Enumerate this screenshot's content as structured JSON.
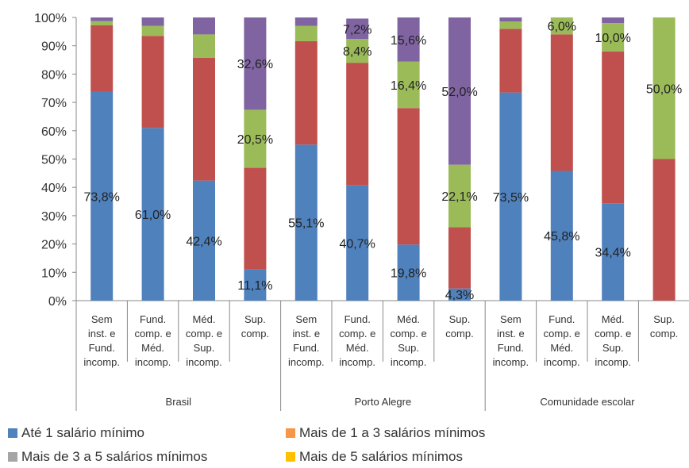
{
  "chart_data": {
    "type": "bar",
    "stacked": true,
    "ylim": [
      0,
      100
    ],
    "ytick_labels": [
      "0%",
      "10%",
      "20%",
      "30%",
      "40%",
      "50%",
      "60%",
      "70%",
      "80%",
      "90%",
      "100%"
    ],
    "groups": [
      {
        "label": "Brasil",
        "categories": [
          [
            "Sem",
            "inst. e",
            "Fund.",
            "incomp."
          ],
          [
            "Fund.",
            "comp. e",
            "Méd.",
            "incomp."
          ],
          [
            "Méd.",
            "comp. e",
            "Sup.",
            "incomp."
          ],
          [
            "Sup.",
            "comp."
          ]
        ]
      },
      {
        "label": "Porto Alegre",
        "categories": [
          [
            "Sem",
            "inst. e",
            "Fund.",
            "incomp."
          ],
          [
            "Fund.",
            "comp. e",
            "Méd.",
            "incomp."
          ],
          [
            "Méd.",
            "comp. e",
            "Sup.",
            "incomp."
          ],
          [
            "Sup.",
            "comp."
          ]
        ]
      },
      {
        "label": "Comunidade escolar",
        "categories": [
          [
            "Sem",
            "inst. e",
            "Fund.",
            "incomp."
          ],
          [
            "Fund.",
            "comp. e",
            "Méd.",
            "incomp."
          ],
          [
            "Méd.",
            "comp. e",
            "Sup.",
            "incomp."
          ],
          [
            "Sup.",
            "comp."
          ]
        ]
      }
    ],
    "series": [
      {
        "name": "Até 1 salário mínimo",
        "color": "#4F81BD",
        "values": [
          73.8,
          61.0,
          42.4,
          11.1,
          55.1,
          40.7,
          19.8,
          4.3,
          73.5,
          45.8,
          34.4,
          0.0
        ],
        "labels": [
          "73,8%",
          "61,0%",
          "42,4%",
          "11,1%",
          "55,1%",
          "40,7%",
          "19,8%",
          "4,3%",
          "73,5%",
          "45,8%",
          "34,4%",
          ""
        ]
      },
      {
        "name": "Mais de 1 a 3 salários mínimos",
        "color": "#C0504D",
        "values": [
          23.4,
          32.5,
          43.4,
          35.8,
          36.5,
          43.3,
          48.2,
          21.6,
          22.5,
          48.2,
          53.6,
          50.0
        ],
        "labels": [
          "",
          "",
          "",
          "",
          "",
          "",
          "",
          "",
          "",
          "",
          "",
          ""
        ]
      },
      {
        "name": "Mais de 3 a 5 salários mínimos",
        "color": "#9BBB59",
        "values": [
          1.5,
          3.5,
          8.2,
          20.5,
          5.4,
          8.4,
          16.4,
          22.1,
          2.6,
          6.0,
          10.0,
          50.0
        ],
        "labels": [
          "",
          "",
          "",
          "20,5%",
          "",
          "8,4%",
          "16,4%",
          "22,1%",
          "",
          "6,0%",
          "10,0%",
          "50,0%"
        ]
      },
      {
        "name": "Mais de 5 salários mínimos",
        "color": "#8064A2",
        "values": [
          1.3,
          3.0,
          6.0,
          32.6,
          3.0,
          7.2,
          15.6,
          52.0,
          1.4,
          0.0,
          2.0,
          0.0
        ],
        "labels": [
          "",
          "",
          "",
          "32,6%",
          "",
          "7,2%",
          "15,6%",
          "52,0%",
          "",
          "",
          "",
          ""
        ]
      }
    ],
    "legend": {
      "position": "bottom",
      "entries": [
        {
          "name": "Até 1 salário mínimo",
          "color": "#4F81BD"
        },
        {
          "name": "Mais de 1 a 3 salários mínimos",
          "color": "#F79646"
        },
        {
          "name": "Mais de 3 a 5 salários mínimos",
          "color": "#A5A5A5"
        },
        {
          "name": "Mais de 5 salários mínimos",
          "color": "#FFC000"
        }
      ]
    },
    "grid": false
  }
}
